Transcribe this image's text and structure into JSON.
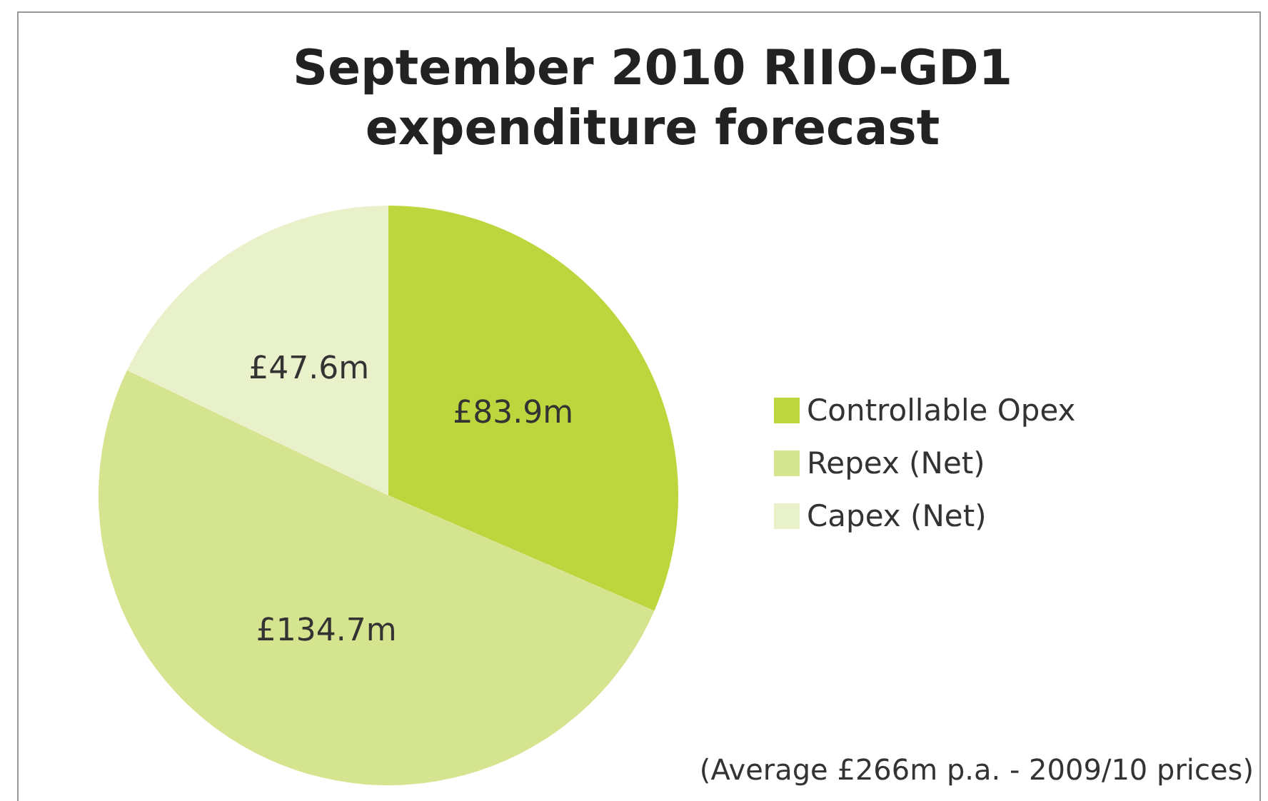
{
  "chart_data": {
    "type": "pie",
    "title": "September 2010 RIIO-GD1\nexpenditure forecast",
    "categories": [
      "Controllable Opex",
      "Repex (Net)",
      "Capex (Net)"
    ],
    "values": [
      83.9,
      134.7,
      47.6
    ],
    "value_labels": [
      "£83.9m",
      "£134.7m",
      "£47.6m"
    ],
    "colors": [
      "#bdd63d",
      "#d5e48e",
      "#e9f1cb"
    ],
    "legend": "right",
    "annotations": [
      "(Average £266m p.a. - 2009/10 prices)"
    ]
  }
}
